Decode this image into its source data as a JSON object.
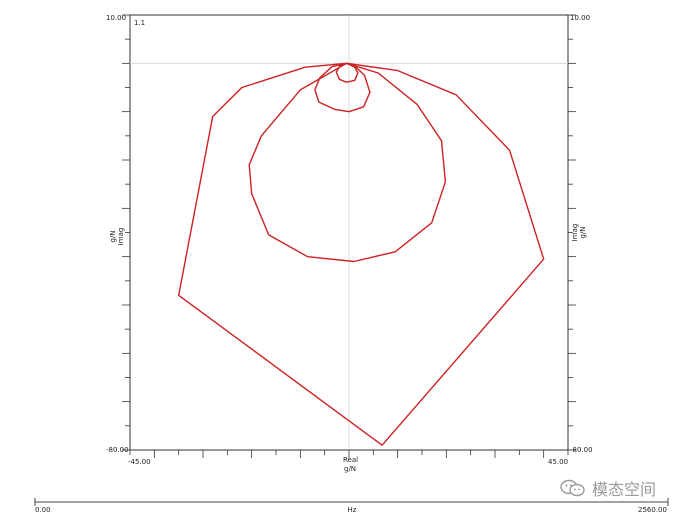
{
  "chart_data": {
    "type": "line",
    "view_label": "1.1",
    "xlabel_top": "Real",
    "xlabel_bottom": "g/N",
    "ylabel_left": [
      "g/N",
      "Imag"
    ],
    "ylabel_right": [
      "Imag",
      "g/N"
    ],
    "xlim": [
      -45.0,
      45.0
    ],
    "ylim": [
      -80.0,
      10.0
    ],
    "x_tick_labels": {
      "min": "-45.00",
      "max": "45.00"
    },
    "y_tick_labels": {
      "max": "10.00",
      "min": "-80.00"
    },
    "freq_axis": {
      "label": "Hz",
      "min": "0.00",
      "max": "2560.00",
      "range": [
        0,
        2560
      ]
    },
    "crosshair": {
      "x": 0.0,
      "y": 0.0
    },
    "series": [
      {
        "color": "#cc2222",
        "points": [
          [
            -0.5,
            0.0
          ],
          [
            -9.0,
            -0.8
          ],
          [
            -22.0,
            -5.0
          ],
          [
            -28.0,
            -11.0
          ],
          [
            -35.0,
            -48.0
          ],
          [
            6.8,
            -79.0
          ],
          [
            40.0,
            -40.5
          ],
          [
            33.0,
            -18.0
          ],
          [
            22.0,
            -6.5
          ],
          [
            10.0,
            -1.5
          ],
          [
            -0.5,
            0.0
          ]
        ]
      },
      {
        "color": "#cc2222",
        "points": [
          [
            -0.5,
            0.0
          ],
          [
            -10.0,
            -5.5
          ],
          [
            -18.0,
            -15.0
          ],
          [
            -20.5,
            -21.0
          ],
          [
            -20.0,
            -27.0
          ],
          [
            -16.5,
            -35.5
          ],
          [
            -8.5,
            -40.0
          ],
          [
            1.0,
            -41.0
          ],
          [
            9.5,
            -39.0
          ],
          [
            17.0,
            -33.0
          ],
          [
            19.8,
            -24.5
          ],
          [
            19.0,
            -16.0
          ],
          [
            14.0,
            -8.5
          ],
          [
            6.0,
            -2.0
          ],
          [
            -0.5,
            0.0
          ]
        ]
      },
      {
        "color": "#cc2222",
        "points": [
          [
            -0.5,
            0.0
          ],
          [
            -3.5,
            -0.7
          ],
          [
            -6.0,
            -3.0
          ],
          [
            -7.0,
            -5.5
          ],
          [
            -6.2,
            -8.0
          ],
          [
            -3.0,
            -9.5
          ],
          [
            0.0,
            -10.0
          ],
          [
            3.0,
            -9.0
          ],
          [
            4.3,
            -6.0
          ],
          [
            3.2,
            -2.5
          ],
          [
            1.0,
            -0.4
          ],
          [
            -0.5,
            0.0
          ]
        ]
      },
      {
        "color": "#cc2222",
        "points": [
          [
            -0.5,
            0.0
          ],
          [
            -1.8,
            -0.5
          ],
          [
            -2.6,
            -1.8
          ],
          [
            -2.0,
            -3.3
          ],
          [
            -0.5,
            -3.9
          ],
          [
            1.2,
            -3.5
          ],
          [
            1.8,
            -2.0
          ],
          [
            1.2,
            -0.8
          ],
          [
            -0.5,
            0.0
          ]
        ]
      }
    ]
  },
  "watermark": {
    "text": "模态空间"
  }
}
